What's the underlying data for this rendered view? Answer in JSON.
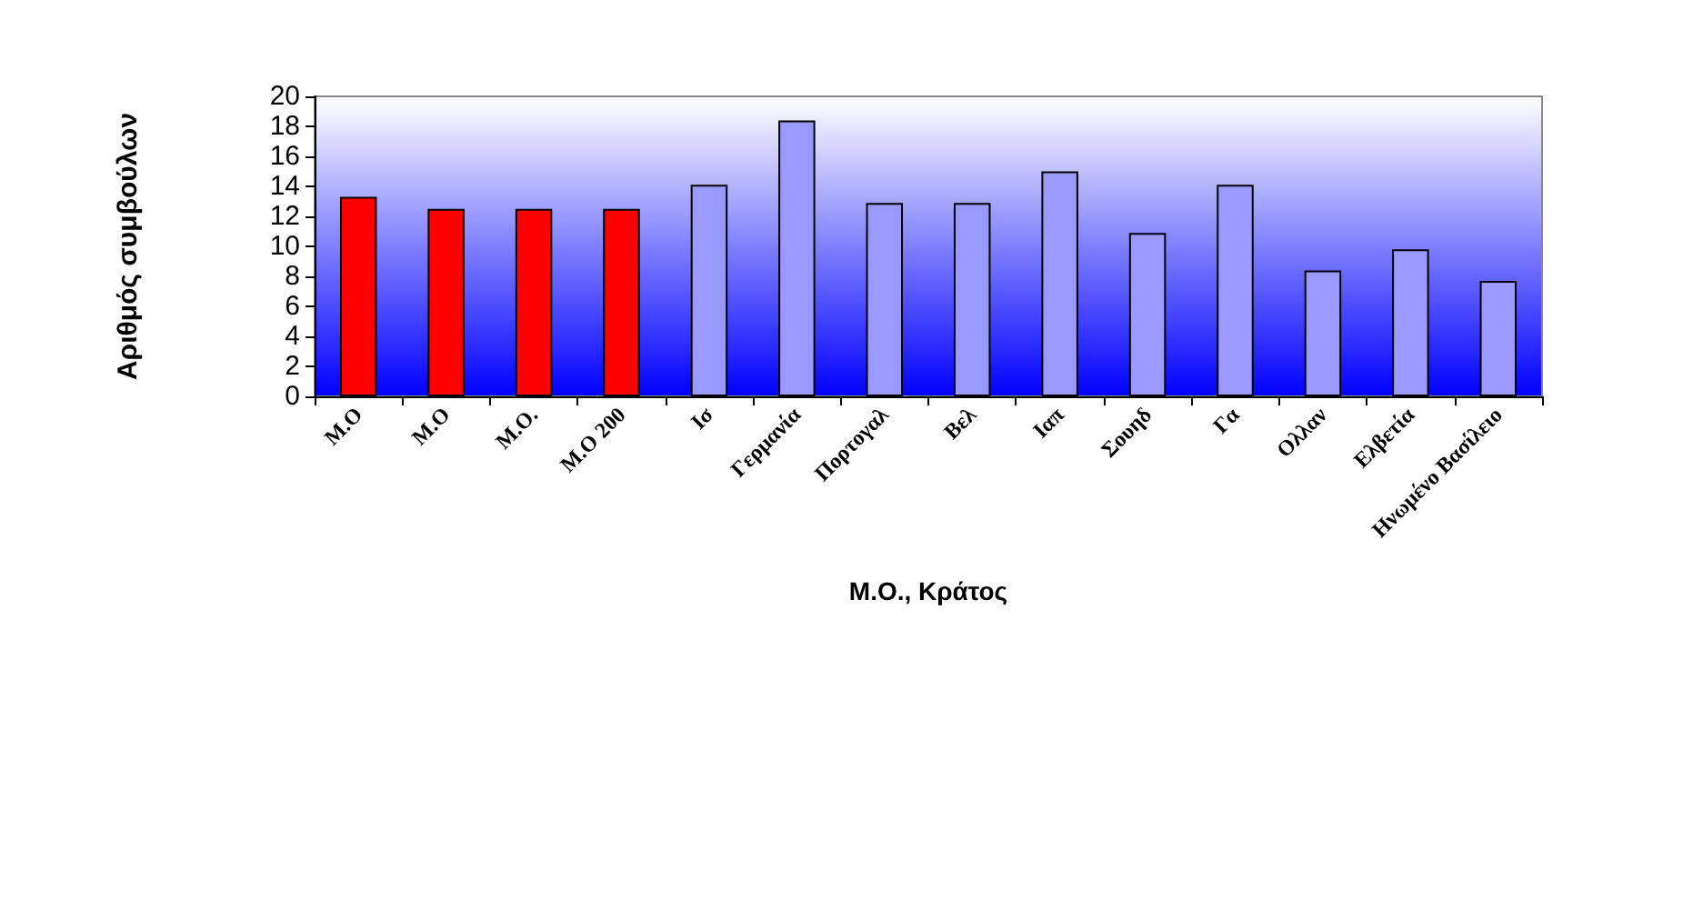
{
  "chart_data": {
    "type": "bar",
    "xlabel": "Μ.Ο., Κράτος",
    "ylabel": "Αριθμός συμβούλων",
    "categories": [
      "Μ.Ο",
      "Μ.Ο",
      "Μ.Ο.",
      "Μ.Ο 200",
      "Ισ",
      "Γερμανία",
      "Πορτογαλ",
      "Βελ",
      "Ιαπ",
      "Σουηδ",
      "Γα",
      "Ολλαν",
      "Ελβετία",
      "Ηνωμένο Βασίλειο"
    ],
    "values": [
      13.3,
      12.5,
      12.5,
      12.5,
      14.1,
      18.4,
      12.9,
      12.9,
      15,
      10.9,
      14.1,
      8.4,
      9.8,
      7.7
    ],
    "colors": [
      "#ff0000",
      "#ff0000",
      "#ff0000",
      "#ff0000",
      "#9999ff",
      "#9999ff",
      "#9999ff",
      "#9999ff",
      "#9999ff",
      "#9999ff",
      "#9999ff",
      "#9999ff",
      "#9999ff",
      "#9999ff"
    ],
    "ylim": [
      0,
      20
    ],
    "yticks": [
      0,
      2,
      4,
      6,
      8,
      10,
      12,
      14,
      16,
      18,
      20
    ],
    "grid": false
  }
}
